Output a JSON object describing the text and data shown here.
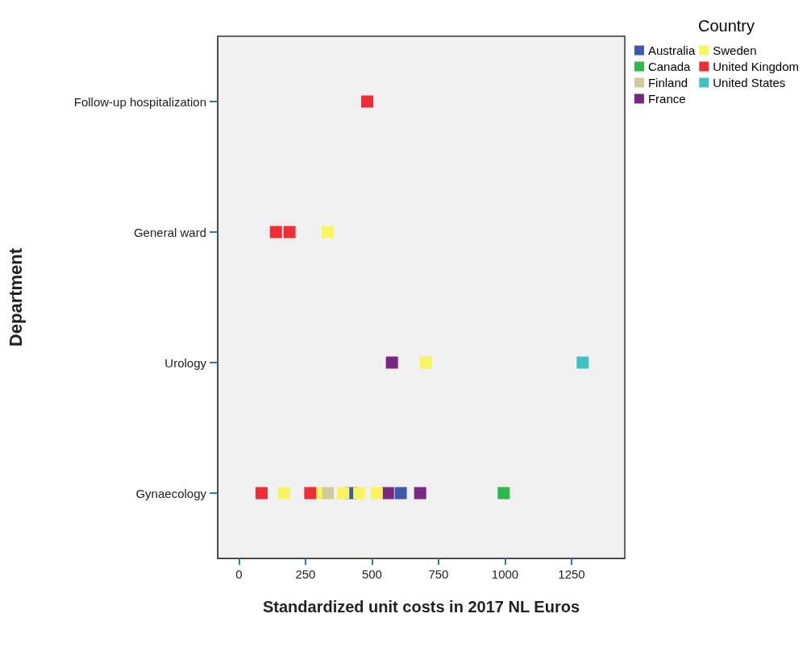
{
  "chart_data": {
    "type": "scatter",
    "xlabel": "Standardized unit costs in 2017 NL Euros",
    "ylabel": "Department",
    "legend_title": "Country",
    "legend": "top right",
    "marker": "square",
    "grid": false,
    "orientation": "horizontal",
    "categories": [
      "Follow-up hospitalization",
      "General ward",
      "Urology",
      "Gynaecology"
    ],
    "xlim": [
      -80,
      1450
    ],
    "xticks": [
      0,
      250,
      500,
      750,
      1000,
      1250
    ],
    "series": [
      {
        "name": "Australia",
        "color": "#3e58ac",
        "x": [
          "Gynaecology",
          "Gynaecology"
        ],
        "values": [
          422,
          608
        ]
      },
      {
        "name": "Canada",
        "color": "#2db84b",
        "x": [
          "Gynaecology"
        ],
        "values": [
          995
        ]
      },
      {
        "name": "Finland",
        "color": "#cfcb98",
        "x": [
          "Gynaecology"
        ],
        "values": [
          334
        ]
      },
      {
        "name": "France",
        "color": "#7a2683",
        "x": [
          "Urology",
          "Gynaecology",
          "Gynaecology"
        ],
        "values": [
          575,
          560,
          681
        ]
      },
      {
        "name": "Sweden",
        "color": "#f8f460",
        "x": [
          "General ward",
          "Urology",
          "Gynaecology",
          "Gynaecology",
          "Gynaecology",
          "Gynaecology",
          "Gynaecology"
        ],
        "values": [
          334,
          702,
          169,
          290,
          392,
          452,
          518
        ]
      },
      {
        "name": "United Kingdom",
        "color": "#ee2d36",
        "x": [
          "Follow-up hospitalization",
          "General ward",
          "General ward",
          "Gynaecology",
          "Gynaecology"
        ],
        "values": [
          482,
          139,
          190,
          85,
          268
        ]
      },
      {
        "name": "United States",
        "color": "#40c1c4",
        "x": [
          "Urology"
        ],
        "values": [
          1292
        ]
      }
    ]
  }
}
